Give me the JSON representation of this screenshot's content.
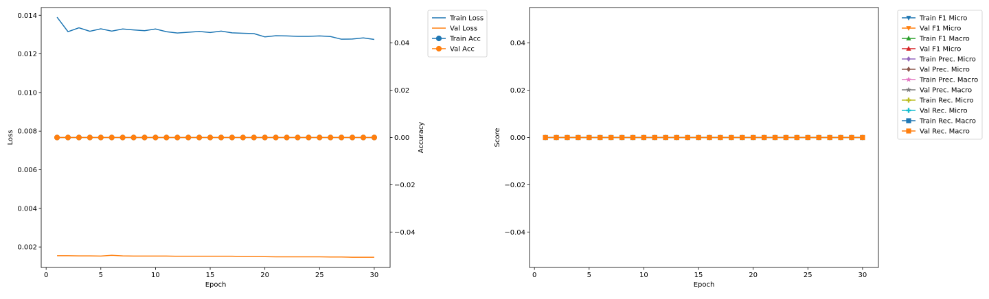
{
  "chart_data": [
    {
      "type": "line",
      "xlabel": "Epoch",
      "ylabel": "Loss",
      "y2label": "Accuracy",
      "x": [
        1,
        2,
        3,
        4,
        5,
        6,
        7,
        8,
        9,
        10,
        11,
        12,
        13,
        14,
        15,
        16,
        17,
        18,
        19,
        20,
        21,
        22,
        23,
        24,
        25,
        26,
        27,
        28,
        29,
        30
      ],
      "xlim": [
        -0.45,
        31.45
      ],
      "xticks": [
        0,
        5,
        10,
        15,
        20,
        25,
        30
      ],
      "ylim": [
        0.00094,
        0.0144
      ],
      "yticks": [
        0.002,
        0.004,
        0.006,
        0.008,
        0.01,
        0.012,
        0.014
      ],
      "ytick_labels": [
        "0.002",
        "0.004",
        "0.006",
        "0.008",
        "0.010",
        "0.012",
        "0.014"
      ],
      "y2lim": [
        -0.055,
        0.055
      ],
      "y2ticks": [
        -0.04,
        -0.02,
        0.0,
        0.02,
        0.04
      ],
      "y2tick_labels": [
        "−0.04",
        "−0.02",
        "0.00",
        "0.02",
        "0.04"
      ],
      "legend_position": "outside-top-right",
      "series": [
        {
          "name": "Train Loss",
          "axis": "left",
          "color": "#1f77b4",
          "marker": "none",
          "values": [
            0.0139,
            0.01315,
            0.01335,
            0.01317,
            0.0133,
            0.01318,
            0.01329,
            0.01324,
            0.0132,
            0.01329,
            0.01315,
            0.01308,
            0.01312,
            0.01316,
            0.01311,
            0.01318,
            0.01309,
            0.01307,
            0.01305,
            0.01288,
            0.01294,
            0.01293,
            0.01291,
            0.01291,
            0.01293,
            0.0129,
            0.01276,
            0.01277,
            0.01283,
            0.01275
          ]
        },
        {
          "name": "Val Loss",
          "axis": "left",
          "color": "#ff7f0e",
          "marker": "none",
          "values": [
            0.00155,
            0.00155,
            0.00154,
            0.00154,
            0.00153,
            0.00157,
            0.00154,
            0.00153,
            0.00153,
            0.00153,
            0.00153,
            0.00152,
            0.00152,
            0.00152,
            0.00152,
            0.00152,
            0.00152,
            0.00151,
            0.00151,
            0.0015,
            0.00149,
            0.00149,
            0.00149,
            0.00149,
            0.00149,
            0.00148,
            0.00148,
            0.00147,
            0.00147,
            0.00147
          ]
        },
        {
          "name": "Train Acc",
          "axis": "right",
          "color": "#1f77b4",
          "marker": "circle",
          "values": [
            0,
            0,
            0,
            0,
            0,
            0,
            0,
            0,
            0,
            0,
            0,
            0,
            0,
            0,
            0,
            0,
            0,
            0,
            0,
            0,
            0,
            0,
            0,
            0,
            0,
            0,
            0,
            0,
            0,
            0
          ]
        },
        {
          "name": "Val Acc",
          "axis": "right",
          "color": "#ff7f0e",
          "marker": "circle",
          "values": [
            0,
            0,
            0,
            0,
            0,
            0,
            0,
            0,
            0,
            0,
            0,
            0,
            0,
            0,
            0,
            0,
            0,
            0,
            0,
            0,
            0,
            0,
            0,
            0,
            0,
            0,
            0,
            0,
            0,
            0
          ]
        }
      ]
    },
    {
      "type": "line",
      "xlabel": "Epoch",
      "ylabel": "Score",
      "x": [
        1,
        2,
        3,
        4,
        5,
        6,
        7,
        8,
        9,
        10,
        11,
        12,
        13,
        14,
        15,
        16,
        17,
        18,
        19,
        20,
        21,
        22,
        23,
        24,
        25,
        26,
        27,
        28,
        29,
        30
      ],
      "xlim": [
        -0.45,
        31.45
      ],
      "xticks": [
        0,
        5,
        10,
        15,
        20,
        25,
        30
      ],
      "ylim": [
        -0.055,
        0.055
      ],
      "yticks": [
        -0.04,
        -0.02,
        0.0,
        0.02,
        0.04
      ],
      "ytick_labels": [
        "−0.04",
        "−0.02",
        "0.00",
        "0.02",
        "0.04"
      ],
      "legend_position": "outside-top-right",
      "series": [
        {
          "name": "Train F1 Micro",
          "color": "#1f77b4",
          "marker": "triangle-down",
          "values": [
            0,
            0,
            0,
            0,
            0,
            0,
            0,
            0,
            0,
            0,
            0,
            0,
            0,
            0,
            0,
            0,
            0,
            0,
            0,
            0,
            0,
            0,
            0,
            0,
            0,
            0,
            0,
            0,
            0,
            0
          ]
        },
        {
          "name": "Val F1 Micro",
          "color": "#ff7f0e",
          "marker": "triangle-down",
          "values": [
            0,
            0,
            0,
            0,
            0,
            0,
            0,
            0,
            0,
            0,
            0,
            0,
            0,
            0,
            0,
            0,
            0,
            0,
            0,
            0,
            0,
            0,
            0,
            0,
            0,
            0,
            0,
            0,
            0,
            0
          ]
        },
        {
          "name": "Train F1 Macro",
          "color": "#2ca02c",
          "marker": "triangle-up",
          "values": [
            0,
            0,
            0,
            0,
            0,
            0,
            0,
            0,
            0,
            0,
            0,
            0,
            0,
            0,
            0,
            0,
            0,
            0,
            0,
            0,
            0,
            0,
            0,
            0,
            0,
            0,
            0,
            0,
            0,
            0
          ]
        },
        {
          "name": "Val F1 Micro",
          "color": "#d62728",
          "marker": "triangle-up",
          "values": [
            0,
            0,
            0,
            0,
            0,
            0,
            0,
            0,
            0,
            0,
            0,
            0,
            0,
            0,
            0,
            0,
            0,
            0,
            0,
            0,
            0,
            0,
            0,
            0,
            0,
            0,
            0,
            0,
            0,
            0
          ]
        },
        {
          "name": "Train Prec. Micro",
          "color": "#9467bd",
          "marker": "diamond",
          "values": [
            0,
            0,
            0,
            0,
            0,
            0,
            0,
            0,
            0,
            0,
            0,
            0,
            0,
            0,
            0,
            0,
            0,
            0,
            0,
            0,
            0,
            0,
            0,
            0,
            0,
            0,
            0,
            0,
            0,
            0
          ]
        },
        {
          "name": "Val Prec. Micro",
          "color": "#8c564b",
          "marker": "diamond",
          "values": [
            0,
            0,
            0,
            0,
            0,
            0,
            0,
            0,
            0,
            0,
            0,
            0,
            0,
            0,
            0,
            0,
            0,
            0,
            0,
            0,
            0,
            0,
            0,
            0,
            0,
            0,
            0,
            0,
            0,
            0
          ]
        },
        {
          "name": "Train Prec. Macro",
          "color": "#e377c2",
          "marker": "star",
          "values": [
            0,
            0,
            0,
            0,
            0,
            0,
            0,
            0,
            0,
            0,
            0,
            0,
            0,
            0,
            0,
            0,
            0,
            0,
            0,
            0,
            0,
            0,
            0,
            0,
            0,
            0,
            0,
            0,
            0,
            0
          ]
        },
        {
          "name": "Val Prec. Macro",
          "color": "#7f7f7f",
          "marker": "star",
          "values": [
            0,
            0,
            0,
            0,
            0,
            0,
            0,
            0,
            0,
            0,
            0,
            0,
            0,
            0,
            0,
            0,
            0,
            0,
            0,
            0,
            0,
            0,
            0,
            0,
            0,
            0,
            0,
            0,
            0,
            0
          ]
        },
        {
          "name": "Train Rec. Micro",
          "color": "#bcbd22",
          "marker": "plus",
          "values": [
            0,
            0,
            0,
            0,
            0,
            0,
            0,
            0,
            0,
            0,
            0,
            0,
            0,
            0,
            0,
            0,
            0,
            0,
            0,
            0,
            0,
            0,
            0,
            0,
            0,
            0,
            0,
            0,
            0,
            0
          ]
        },
        {
          "name": "Val Rec. Micro",
          "color": "#17becf",
          "marker": "plus",
          "values": [
            0,
            0,
            0,
            0,
            0,
            0,
            0,
            0,
            0,
            0,
            0,
            0,
            0,
            0,
            0,
            0,
            0,
            0,
            0,
            0,
            0,
            0,
            0,
            0,
            0,
            0,
            0,
            0,
            0,
            0
          ]
        },
        {
          "name": "Train Rec. Macro",
          "color": "#1f77b4",
          "marker": "square",
          "values": [
            0,
            0,
            0,
            0,
            0,
            0,
            0,
            0,
            0,
            0,
            0,
            0,
            0,
            0,
            0,
            0,
            0,
            0,
            0,
            0,
            0,
            0,
            0,
            0,
            0,
            0,
            0,
            0,
            0,
            0
          ]
        },
        {
          "name": "Val Rec. Macro",
          "color": "#ff7f0e",
          "marker": "square",
          "values": [
            0,
            0,
            0,
            0,
            0,
            0,
            0,
            0,
            0,
            0,
            0,
            0,
            0,
            0,
            0,
            0,
            0,
            0,
            0,
            0,
            0,
            0,
            0,
            0,
            0,
            0,
            0,
            0,
            0,
            0
          ]
        }
      ]
    }
  ]
}
